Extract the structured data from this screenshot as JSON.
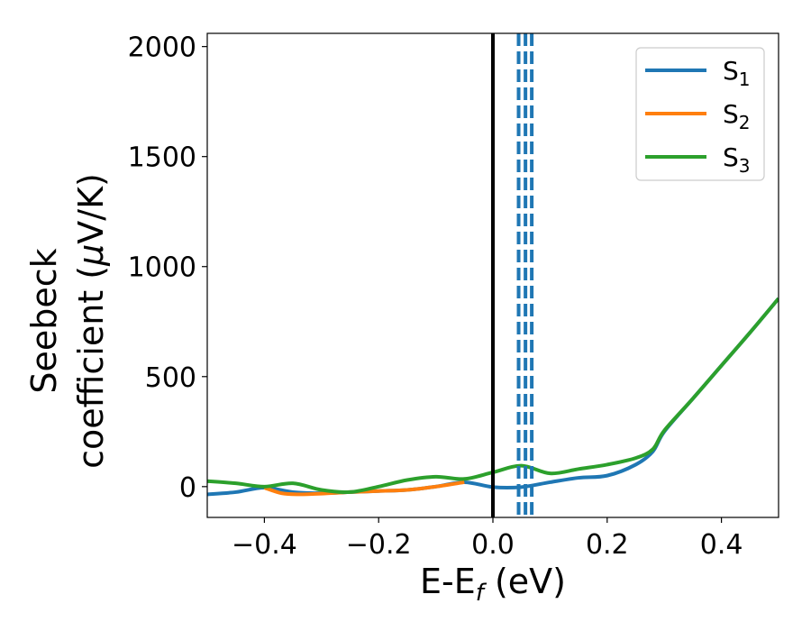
{
  "chart_data": {
    "type": "line",
    "title": "",
    "xlabel": {
      "main": "E-E",
      "sub": "f",
      "rest": " (eV)"
    },
    "ylabel": {
      "line1": "Seebeck",
      "line2_prefix": "coefficient  (",
      "mu": "μ",
      "line2_suffix": "V/K)"
    },
    "xlim": [
      -0.5,
      0.5
    ],
    "ylim": [
      -140,
      2060
    ],
    "xticks": [
      -0.4,
      -0.2,
      0.0,
      0.2,
      0.4
    ],
    "xtick_labels": [
      "−0.4",
      "−0.2",
      "0.0",
      "0.2",
      "0.4"
    ],
    "yticks": [
      0,
      500,
      1000,
      1500,
      2000
    ],
    "ytick_labels": [
      "0",
      "500",
      "1000",
      "1500",
      "2000"
    ],
    "grid": false,
    "legend_position": "top-right",
    "fermi_line_x": 0.0,
    "dashed_lines_x": [
      0.045,
      0.057,
      0.068
    ],
    "series": [
      {
        "name": "S",
        "sub": "1",
        "color": "#1f77b4",
        "x": [
          -0.5,
          -0.45,
          -0.4,
          -0.35,
          -0.3,
          -0.25,
          -0.2,
          -0.15,
          -0.1,
          -0.05,
          0.0,
          0.05,
          0.1,
          0.15,
          0.2,
          0.25,
          0.28,
          0.3,
          0.35,
          0.4,
          0.45,
          0.5
        ],
        "y": [
          -35,
          -25,
          -5,
          -25,
          -30,
          -25,
          -20,
          -15,
          0,
          20,
          -2,
          -2,
          20,
          40,
          50,
          100,
          160,
          250,
          400,
          550,
          700,
          855
        ]
      },
      {
        "name": "S",
        "sub": "2",
        "color": "#ff7f0e",
        "x": [
          -0.4,
          -0.37,
          -0.34,
          -0.3,
          -0.25,
          -0.2,
          -0.15,
          -0.1,
          -0.05
        ],
        "y": [
          -5,
          -30,
          -35,
          -32,
          -25,
          -20,
          -15,
          0,
          20
        ]
      },
      {
        "name": "S",
        "sub": "3",
        "color": "#2ca02c",
        "x": [
          -0.5,
          -0.45,
          -0.4,
          -0.35,
          -0.3,
          -0.25,
          -0.2,
          -0.15,
          -0.1,
          -0.05,
          0.0,
          0.05,
          0.1,
          0.15,
          0.2,
          0.25,
          0.28,
          0.3,
          0.35,
          0.4,
          0.45,
          0.5
        ],
        "y": [
          25,
          15,
          0,
          15,
          -15,
          -25,
          0,
          30,
          45,
          35,
          65,
          95,
          60,
          80,
          100,
          130,
          170,
          255,
          400,
          550,
          700,
          855
        ]
      }
    ]
  }
}
